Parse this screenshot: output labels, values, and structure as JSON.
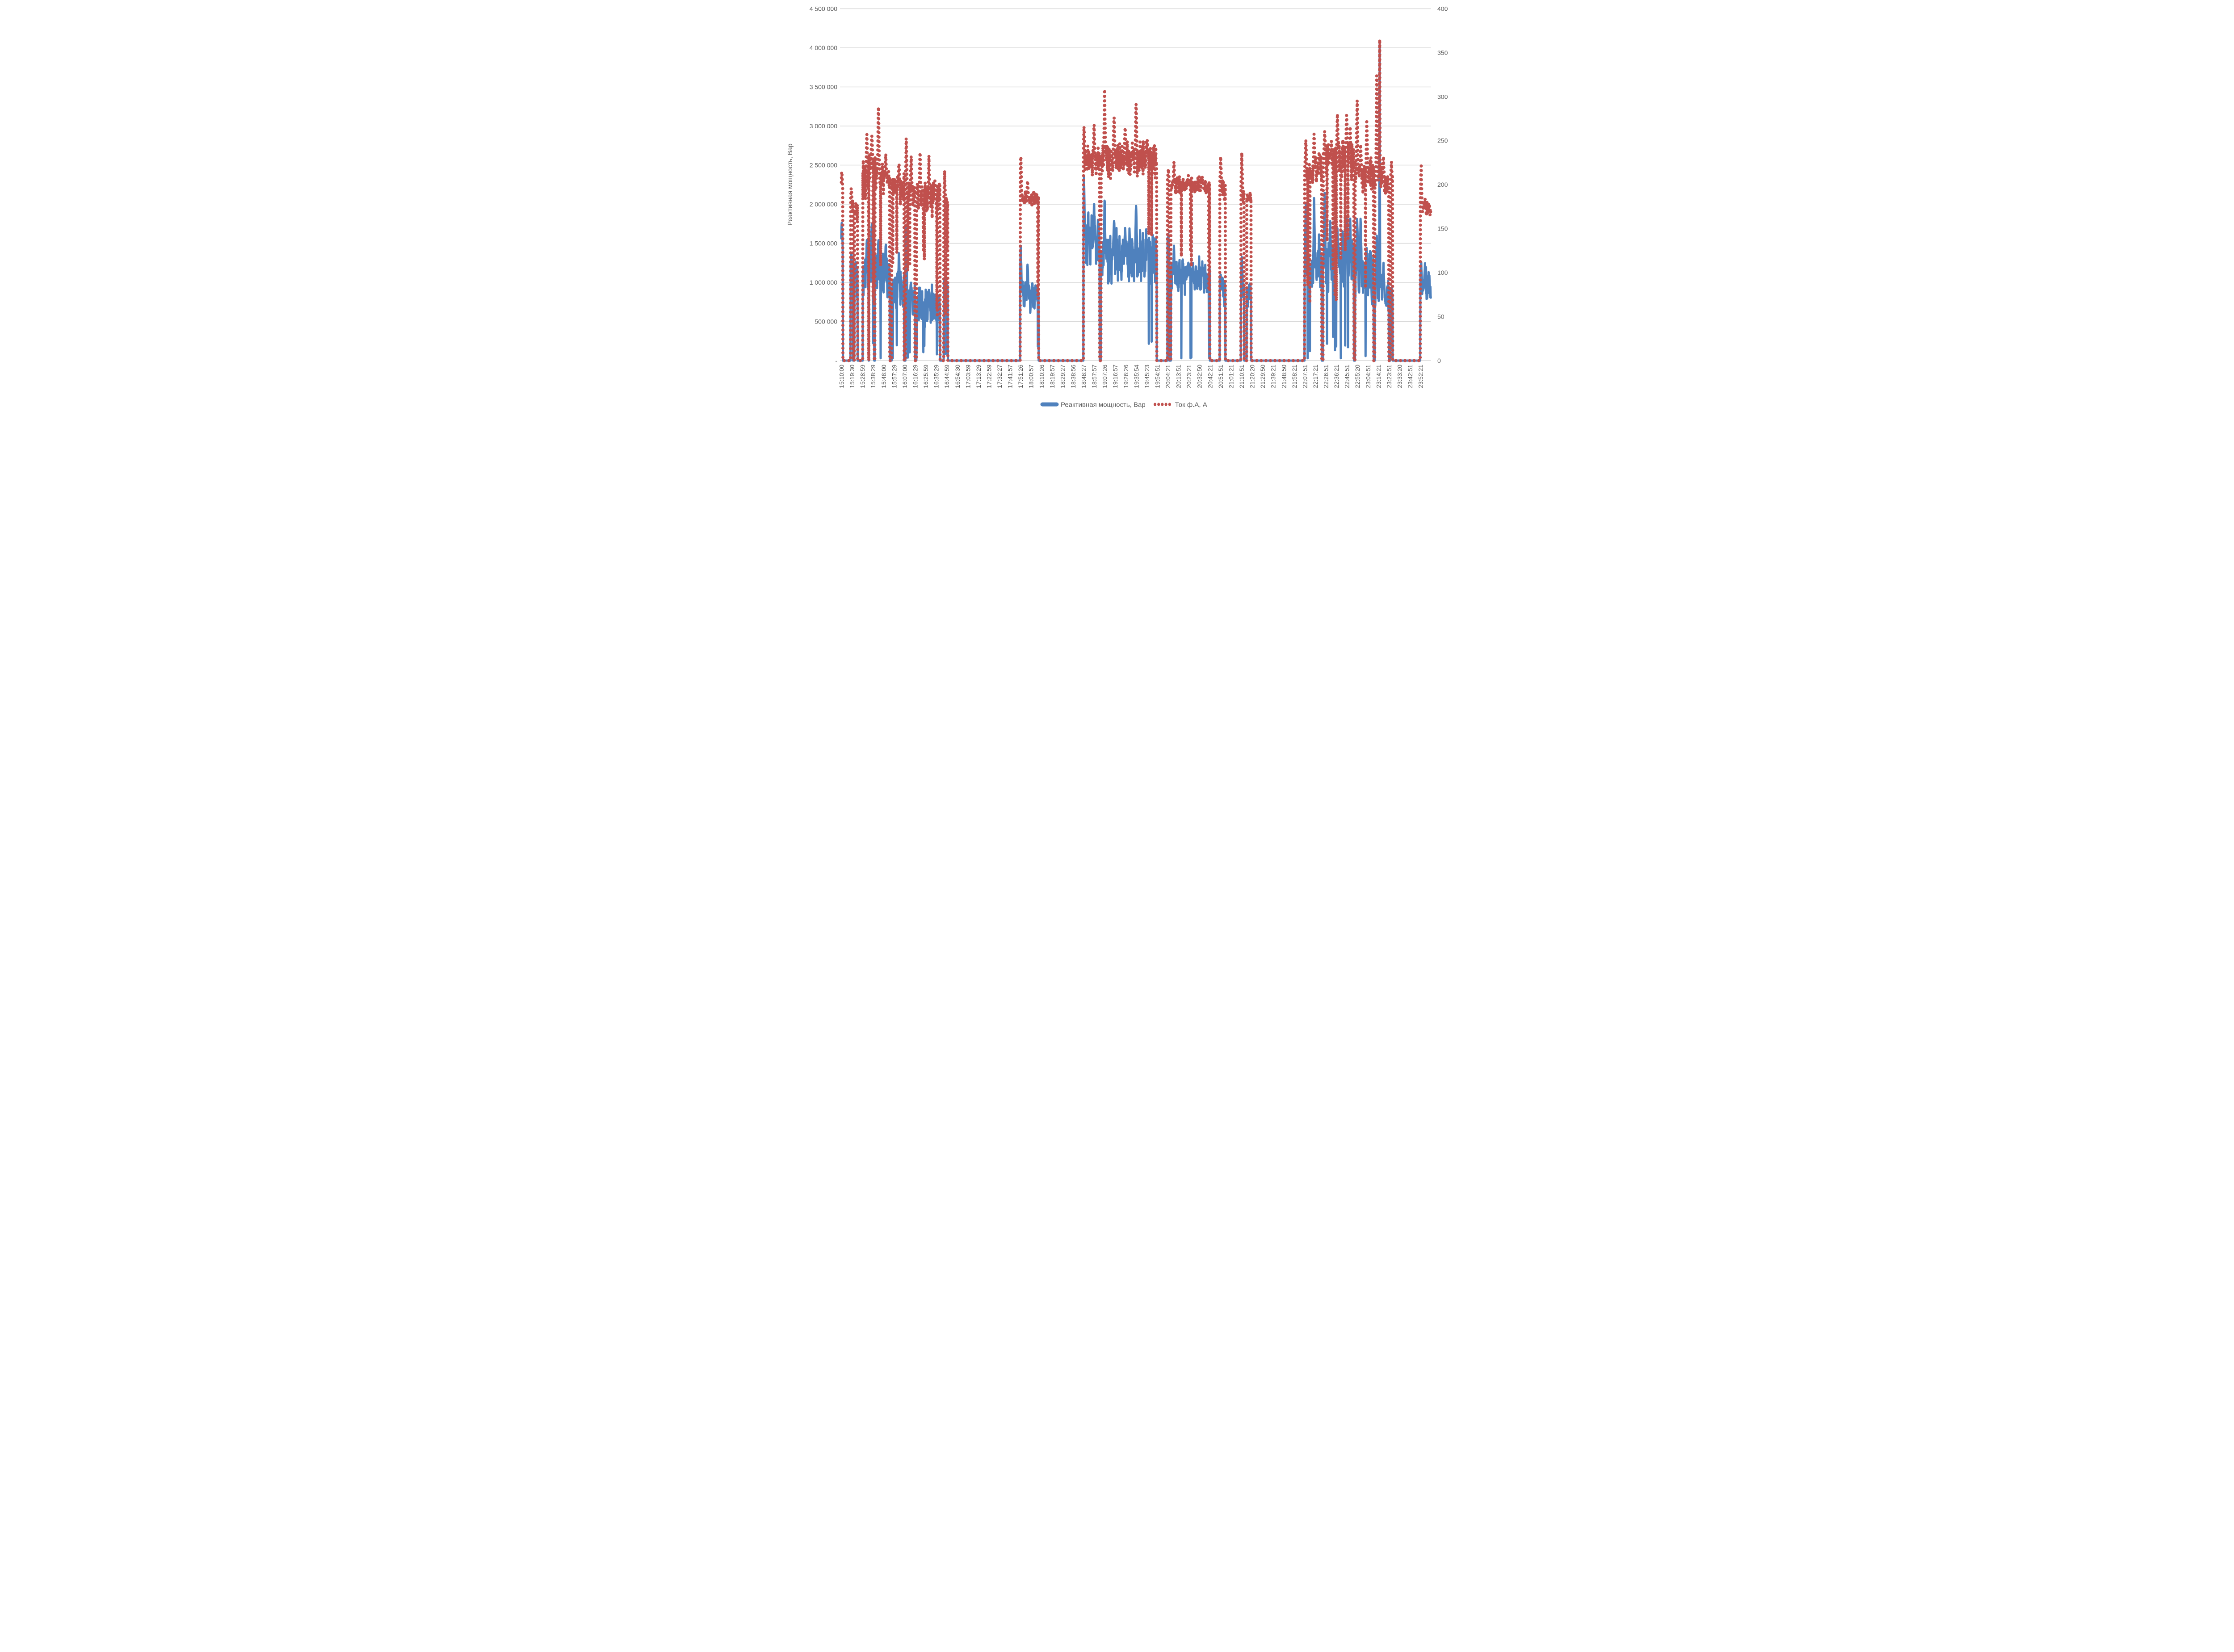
{
  "chart_data": {
    "type": "line",
    "title": "",
    "background": "#FFFFFF",
    "text_color": "#595959",
    "gridline_color": "#D9D9D9",
    "grid": true,
    "legend_position": "bottom-center",
    "left_axis": {
      "title": "Реактивная мощность, Вар",
      "min": 0,
      "max": 4500000,
      "step": 500000,
      "tick_labels": [
        "-",
        "500 000",
        "1 000 000",
        "1 500 000",
        "2 000 000",
        "2 500 000",
        "3 000 000",
        "3 500 000",
        "4 000 000",
        "4 500 000"
      ]
    },
    "right_axis": {
      "title": "",
      "min": 0,
      "max": 400,
      "step": 50,
      "tick_labels": [
        "0",
        "50",
        "100",
        "150",
        "200",
        "250",
        "300",
        "350",
        "400"
      ]
    },
    "x_axis": {
      "title": "",
      "tick_rotation": -90,
      "tick_labels": [
        "15:10:00",
        "15:19:30",
        "15:28:59",
        "15:38:29",
        "15:48:00",
        "15:57:29",
        "16:07:00",
        "16:16:29",
        "16:25:59",
        "16:35:29",
        "16:44:59",
        "16:54:30",
        "17:03:59",
        "17:13:29",
        "17:22:59",
        "17:32:27",
        "17:41:57",
        "17:51:26",
        "18:00:57",
        "18:10:26",
        "18:19:57",
        "18:29:27",
        "18:38:56",
        "18:48:27",
        "18:57:57",
        "19:07:26",
        "19:16:57",
        "19:26:26",
        "19:35:54",
        "19:45:23",
        "19:54:51",
        "20:04:21",
        "20:13:51",
        "20:23:21",
        "20:32:50",
        "20:42:21",
        "20:51:51",
        "21:01:21",
        "21:10:51",
        "21:20:20",
        "21:29:50",
        "21:39:21",
        "21:48:50",
        "21:58:21",
        "22:07:51",
        "22:17:21",
        "22:26:51",
        "22:36:21",
        "22:45:51",
        "22:55:20",
        "23:04:51",
        "23:14:21",
        "23:23:51",
        "23:33:20",
        "23:42:51",
        "23:52:21"
      ]
    },
    "legend": [
      {
        "name": "Реактивная мощность, Вар",
        "color": "#4F81BD",
        "style": "solid",
        "axis": "left"
      },
      {
        "name": "Ток ф.А, А",
        "color": "#C0504D",
        "style": "dotted",
        "axis": "right"
      }
    ],
    "series_meta": {
      "sample_step_minutes": 0.18,
      "time_span_minutes": 531.8,
      "start_time": "15:10:00",
      "random_seed": 42
    },
    "segments": [
      {
        "t0": 0,
        "t1": 1.3,
        "blue": 1350000,
        "bv": 0.3,
        "red": 190,
        "rv": 0.12,
        "dip": 0.06,
        "peaks": [
          {
            "t": 0.5,
            "blue": 1850000,
            "red": 220
          }
        ]
      },
      {
        "t0": 1.3,
        "t1": 8.3,
        "zero": true
      },
      {
        "t0": 8.3,
        "t1": 10.6,
        "blue": 1150000,
        "bv": 0.3,
        "red": 175,
        "rv": 0.14,
        "dip": 0.05,
        "peaks": [
          {
            "t": 9,
            "blue": 1400000,
            "red": 199
          }
        ]
      },
      {
        "t0": 10.6,
        "t1": 11.8,
        "zero": true
      },
      {
        "t0": 11.8,
        "t1": 14.6,
        "blue": 1050000,
        "bv": 0.3,
        "red": 165,
        "rv": 0.12,
        "dip": 0.05,
        "peaks": [
          {
            "t": 13,
            "blue": 1300000,
            "red": 182
          }
        ]
      },
      {
        "t0": 14.6,
        "t1": 19.3,
        "zero": true
      },
      {
        "t0": 19.3,
        "t1": 24.5,
        "blue": 1100000,
        "bv": 0.35,
        "red": 210,
        "rv": 0.17,
        "dip": 0.04,
        "peaks": [
          {
            "t": 23,
            "blue": 1550000,
            "red": 258
          }
        ]
      },
      {
        "t0": 24.5,
        "t1": 24.9,
        "zero": true
      },
      {
        "t0": 24.9,
        "t1": 29.6,
        "blue": 1300000,
        "bv": 0.3,
        "red": 225,
        "rv": 0.14,
        "dip": 0.03,
        "peaks": [
          {
            "t": 27.5,
            "blue": 1850000,
            "red": 262
          }
        ]
      },
      {
        "t0": 29.6,
        "t1": 30.3,
        "zero": true
      },
      {
        "t0": 30.3,
        "t1": 43.7,
        "blue": 1080000,
        "bv": 0.37,
        "red": 208,
        "rv": 0.15,
        "dip": 0.03,
        "peaks": [
          {
            "t": 33.5,
            "blue": 1630000,
            "red": 304
          },
          {
            "t": 40,
            "blue": 1560000,
            "red": 240
          }
        ]
      },
      {
        "t0": 43.7,
        "t1": 45.4,
        "zero": true
      },
      {
        "t0": 45.4,
        "t1": 56.6,
        "blue": 880000,
        "bv": 0.38,
        "red": 196,
        "rv": 0.13,
        "dip": 0.03,
        "peaks": [
          {
            "t": 52,
            "blue": 1450000,
            "red": 228
          }
        ]
      },
      {
        "t0": 56.6,
        "t1": 57.9,
        "zero": true
      },
      {
        "t0": 57.9,
        "t1": 66.3,
        "blue": 800000,
        "bv": 0.4,
        "red": 192,
        "rv": 0.14,
        "dip": 0.04,
        "peaks": [
          {
            "t": 58.6,
            "blue": 1780000,
            "red": 258
          },
          {
            "t": 63,
            "blue": 950000,
            "red": 235
          }
        ]
      },
      {
        "t0": 66.3,
        "t1": 67.7,
        "zero": true
      },
      {
        "t0": 67.7,
        "t1": 89,
        "blue": 680000,
        "bv": 0.5,
        "red": 186,
        "rv": 0.15,
        "dip": 0.05,
        "peaks": [
          {
            "t": 71,
            "blue": 950000,
            "red": 240
          },
          {
            "t": 79,
            "blue": 900000,
            "red": 232
          },
          {
            "t": 84.5,
            "blue": 520000,
            "red": 205
          }
        ]
      },
      {
        "t0": 89,
        "t1": 92.4,
        "zero": true
      },
      {
        "t0": 92.4,
        "t1": 96,
        "blue": 980000,
        "bv": 0.35,
        "red": 178,
        "rv": 0.14,
        "dip": 0.04,
        "peaks": [
          {
            "t": 93.2,
            "blue": 1050000,
            "red": 216
          }
        ]
      },
      {
        "t0": 96,
        "t1": 161.4,
        "zero": true
      },
      {
        "t0": 161.4,
        "t1": 178,
        "blue": 840000,
        "bv": 0.3,
        "red": 184,
        "rv": 0.07,
        "dip": 0.02,
        "peaks": [
          {
            "t": 161.9,
            "blue": 1600000,
            "red": 242
          },
          {
            "t": 168,
            "blue": 1260000,
            "red": 206
          }
        ]
      },
      {
        "t0": 178,
        "t1": 218.4,
        "zero": true
      },
      {
        "t0": 218.4,
        "t1": 233,
        "blue": 1520000,
        "bv": 0.3,
        "red": 228,
        "rv": 0.12,
        "dip": 0.02,
        "peaks": [
          {
            "t": 218.9,
            "blue": 2400000,
            "red": 268
          },
          {
            "t": 228,
            "blue": 2050000,
            "red": 272
          }
        ]
      },
      {
        "t0": 233,
        "t1": 234.3,
        "zero": true
      },
      {
        "t0": 234.3,
        "t1": 284.5,
        "blue": 1320000,
        "bv": 0.33,
        "red": 229,
        "rv": 0.14,
        "dip": 0.015,
        "peaks": [
          {
            "t": 237.5,
            "blue": 2080000,
            "red": 312
          },
          {
            "t": 246,
            "blue": 1900000,
            "red": 288
          },
          {
            "t": 256,
            "blue": 1750000,
            "red": 270
          },
          {
            "t": 262,
            "blue": 400000,
            "red": 196
          },
          {
            "t": 265.9,
            "blue": 2150000,
            "red": 308
          },
          {
            "t": 276,
            "blue": 1560000,
            "red": 252
          }
        ]
      },
      {
        "t0": 284.5,
        "t1": 294.3,
        "zero": true
      },
      {
        "t0": 294.3,
        "t1": 295.9,
        "blue": 1400000,
        "bv": 0.25,
        "red": 204,
        "rv": 0.1,
        "dip": 0,
        "peaks": [
          {
            "t": 295,
            "blue": 1460000,
            "red": 218
          }
        ]
      },
      {
        "t0": 295.9,
        "t1": 297.3,
        "zero": true
      },
      {
        "t0": 297.3,
        "t1": 332.4,
        "blue": 1070000,
        "bv": 0.27,
        "red": 199,
        "rv": 0.08,
        "dip": 0.02,
        "peaks": [
          {
            "t": 300,
            "blue": 1470000,
            "red": 226
          },
          {
            "t": 313,
            "blue": 1260000,
            "red": 211
          },
          {
            "t": 326,
            "blue": 1120000,
            "red": 206
          }
        ]
      },
      {
        "t0": 332.4,
        "t1": 341.3,
        "zero": true
      },
      {
        "t0": 341.3,
        "t1": 346.5,
        "blue": 930000,
        "bv": 0.3,
        "red": 197,
        "rv": 0.1,
        "dip": 0.03,
        "peaks": [
          {
            "t": 342.2,
            "blue": 1100000,
            "red": 232
          }
        ]
      },
      {
        "t0": 346.5,
        "t1": 360.5,
        "zero": true
      },
      {
        "t0": 360.5,
        "t1": 363.4,
        "blue": 900000,
        "bv": 0.3,
        "red": 191,
        "rv": 0.12,
        "dip": 0.03,
        "peaks": [
          {
            "t": 361.2,
            "blue": 1340000,
            "red": 238
          }
        ]
      },
      {
        "t0": 363.4,
        "t1": 365.7,
        "zero": true
      },
      {
        "t0": 365.7,
        "t1": 369.7,
        "blue": 860000,
        "bv": 0.28,
        "red": 186,
        "rv": 0.1,
        "dip": 0.03,
        "peaks": []
      },
      {
        "t0": 369.7,
        "t1": 417.8,
        "zero": true
      },
      {
        "t0": 417.8,
        "t1": 433.4,
        "blue": 1130000,
        "bv": 0.35,
        "red": 214,
        "rv": 0.12,
        "dip": 0.03,
        "peaks": [
          {
            "t": 419,
            "blue": 2180000,
            "red": 258
          },
          {
            "t": 426.5,
            "blue": 2200000,
            "red": 263
          },
          {
            "t": 431,
            "blue": 1720000,
            "red": 242
          }
        ]
      },
      {
        "t0": 433.4,
        "t1": 434.7,
        "zero": true
      },
      {
        "t0": 434.7,
        "t1": 462.4,
        "blue": 1240000,
        "bv": 0.42,
        "red": 231,
        "rv": 0.15,
        "dip": 0.035,
        "peaks": [
          {
            "t": 436,
            "blue": 2270000,
            "red": 265
          },
          {
            "t": 441,
            "blue": 1900000,
            "red": 232
          },
          {
            "t": 447.5,
            "blue": 1780000,
            "red": 290
          },
          {
            "t": 455.8,
            "blue": 1980000,
            "red": 291
          },
          {
            "t": 459,
            "blue": 1850000,
            "red": 268
          }
        ]
      },
      {
        "t0": 462.4,
        "t1": 463.5,
        "zero": true
      },
      {
        "t0": 463.5,
        "t1": 480.2,
        "blue": 1140000,
        "bv": 0.4,
        "red": 212,
        "rv": 0.14,
        "dip": 0.04,
        "peaks": [
          {
            "t": 465.3,
            "blue": 1950000,
            "red": 313
          },
          {
            "t": 468.5,
            "blue": 1900000,
            "red": 250
          },
          {
            "t": 474,
            "blue": 1320000,
            "red": 278
          }
        ]
      },
      {
        "t0": 480.2,
        "t1": 481.2,
        "zero": true
      },
      {
        "t0": 481.2,
        "t1": 493.8,
        "blue": 900000,
        "bv": 0.4,
        "red": 206,
        "rv": 0.14,
        "dip": 0.03,
        "peaks": [
          {
            "t": 483,
            "blue": 1700000,
            "red": 341
          },
          {
            "t": 485.6,
            "blue": 4170000,
            "red": 370,
            "w": 0.45
          },
          {
            "t": 489,
            "blue": 1250000,
            "red": 232
          }
        ]
      },
      {
        "t0": 493.8,
        "t1": 495.3,
        "zero": true
      },
      {
        "t0": 495.3,
        "t1": 497.2,
        "blue": 820000,
        "bv": 0.3,
        "red": 200,
        "rv": 0.14,
        "dip": 0.02,
        "peaks": [
          {
            "t": 496.2,
            "blue": 950000,
            "red": 230
          }
        ]
      },
      {
        "t0": 497.2,
        "t1": 522.3,
        "zero": true
      },
      {
        "t0": 522.3,
        "t1": 531.8,
        "blue": 950000,
        "bv": 0.3,
        "red": 172,
        "rv": 0.09,
        "dip": 0.02,
        "peaks": [
          {
            "t": 523,
            "blue": 1300000,
            "red": 228
          },
          {
            "t": 526.5,
            "blue": 1280000,
            "red": 186
          }
        ]
      }
    ]
  }
}
